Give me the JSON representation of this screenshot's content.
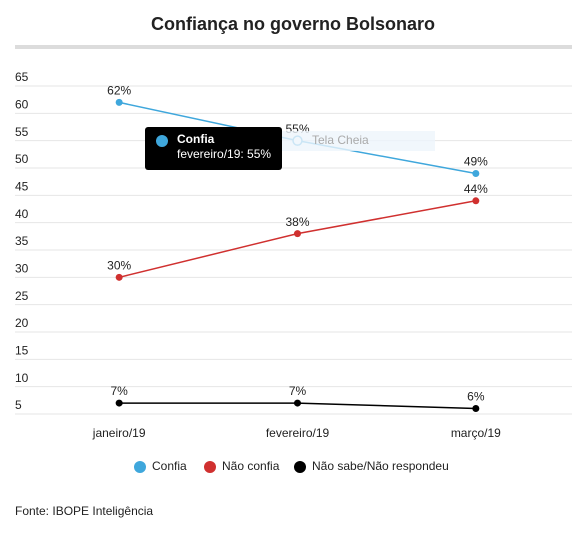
{
  "chart_data": {
    "type": "line",
    "title": "Confiança no governo Bolsonaro",
    "categories": [
      "janeiro/19",
      "fevereiro/19",
      "março/19"
    ],
    "series": [
      {
        "name": "Confia",
        "color": "#3fa7dc",
        "values": [
          62,
          55,
          49
        ],
        "value_labels": [
          "62%",
          "55%",
          "49%"
        ]
      },
      {
        "name": "Não confia",
        "color": "#d0302f",
        "values": [
          30,
          38,
          44
        ],
        "value_labels": [
          "30%",
          "38%",
          "44%"
        ]
      },
      {
        "name": "Não sabe/Não respondeu",
        "color": "#000000",
        "values": [
          7,
          7,
          6
        ],
        "value_labels": [
          "7%",
          "7%",
          "6%"
        ]
      }
    ],
    "ylim": [
      5,
      65
    ],
    "yticks": [
      5,
      10,
      15,
      20,
      25,
      30,
      35,
      40,
      45,
      50,
      55,
      60,
      65
    ],
    "grid": true,
    "legend": "bottom",
    "tooltip": {
      "series": "Confia",
      "text": "fevereiro/19: 55%"
    },
    "overlay_text": "Tela Cheia",
    "source": "Fonte: IBOPE Inteligência"
  }
}
